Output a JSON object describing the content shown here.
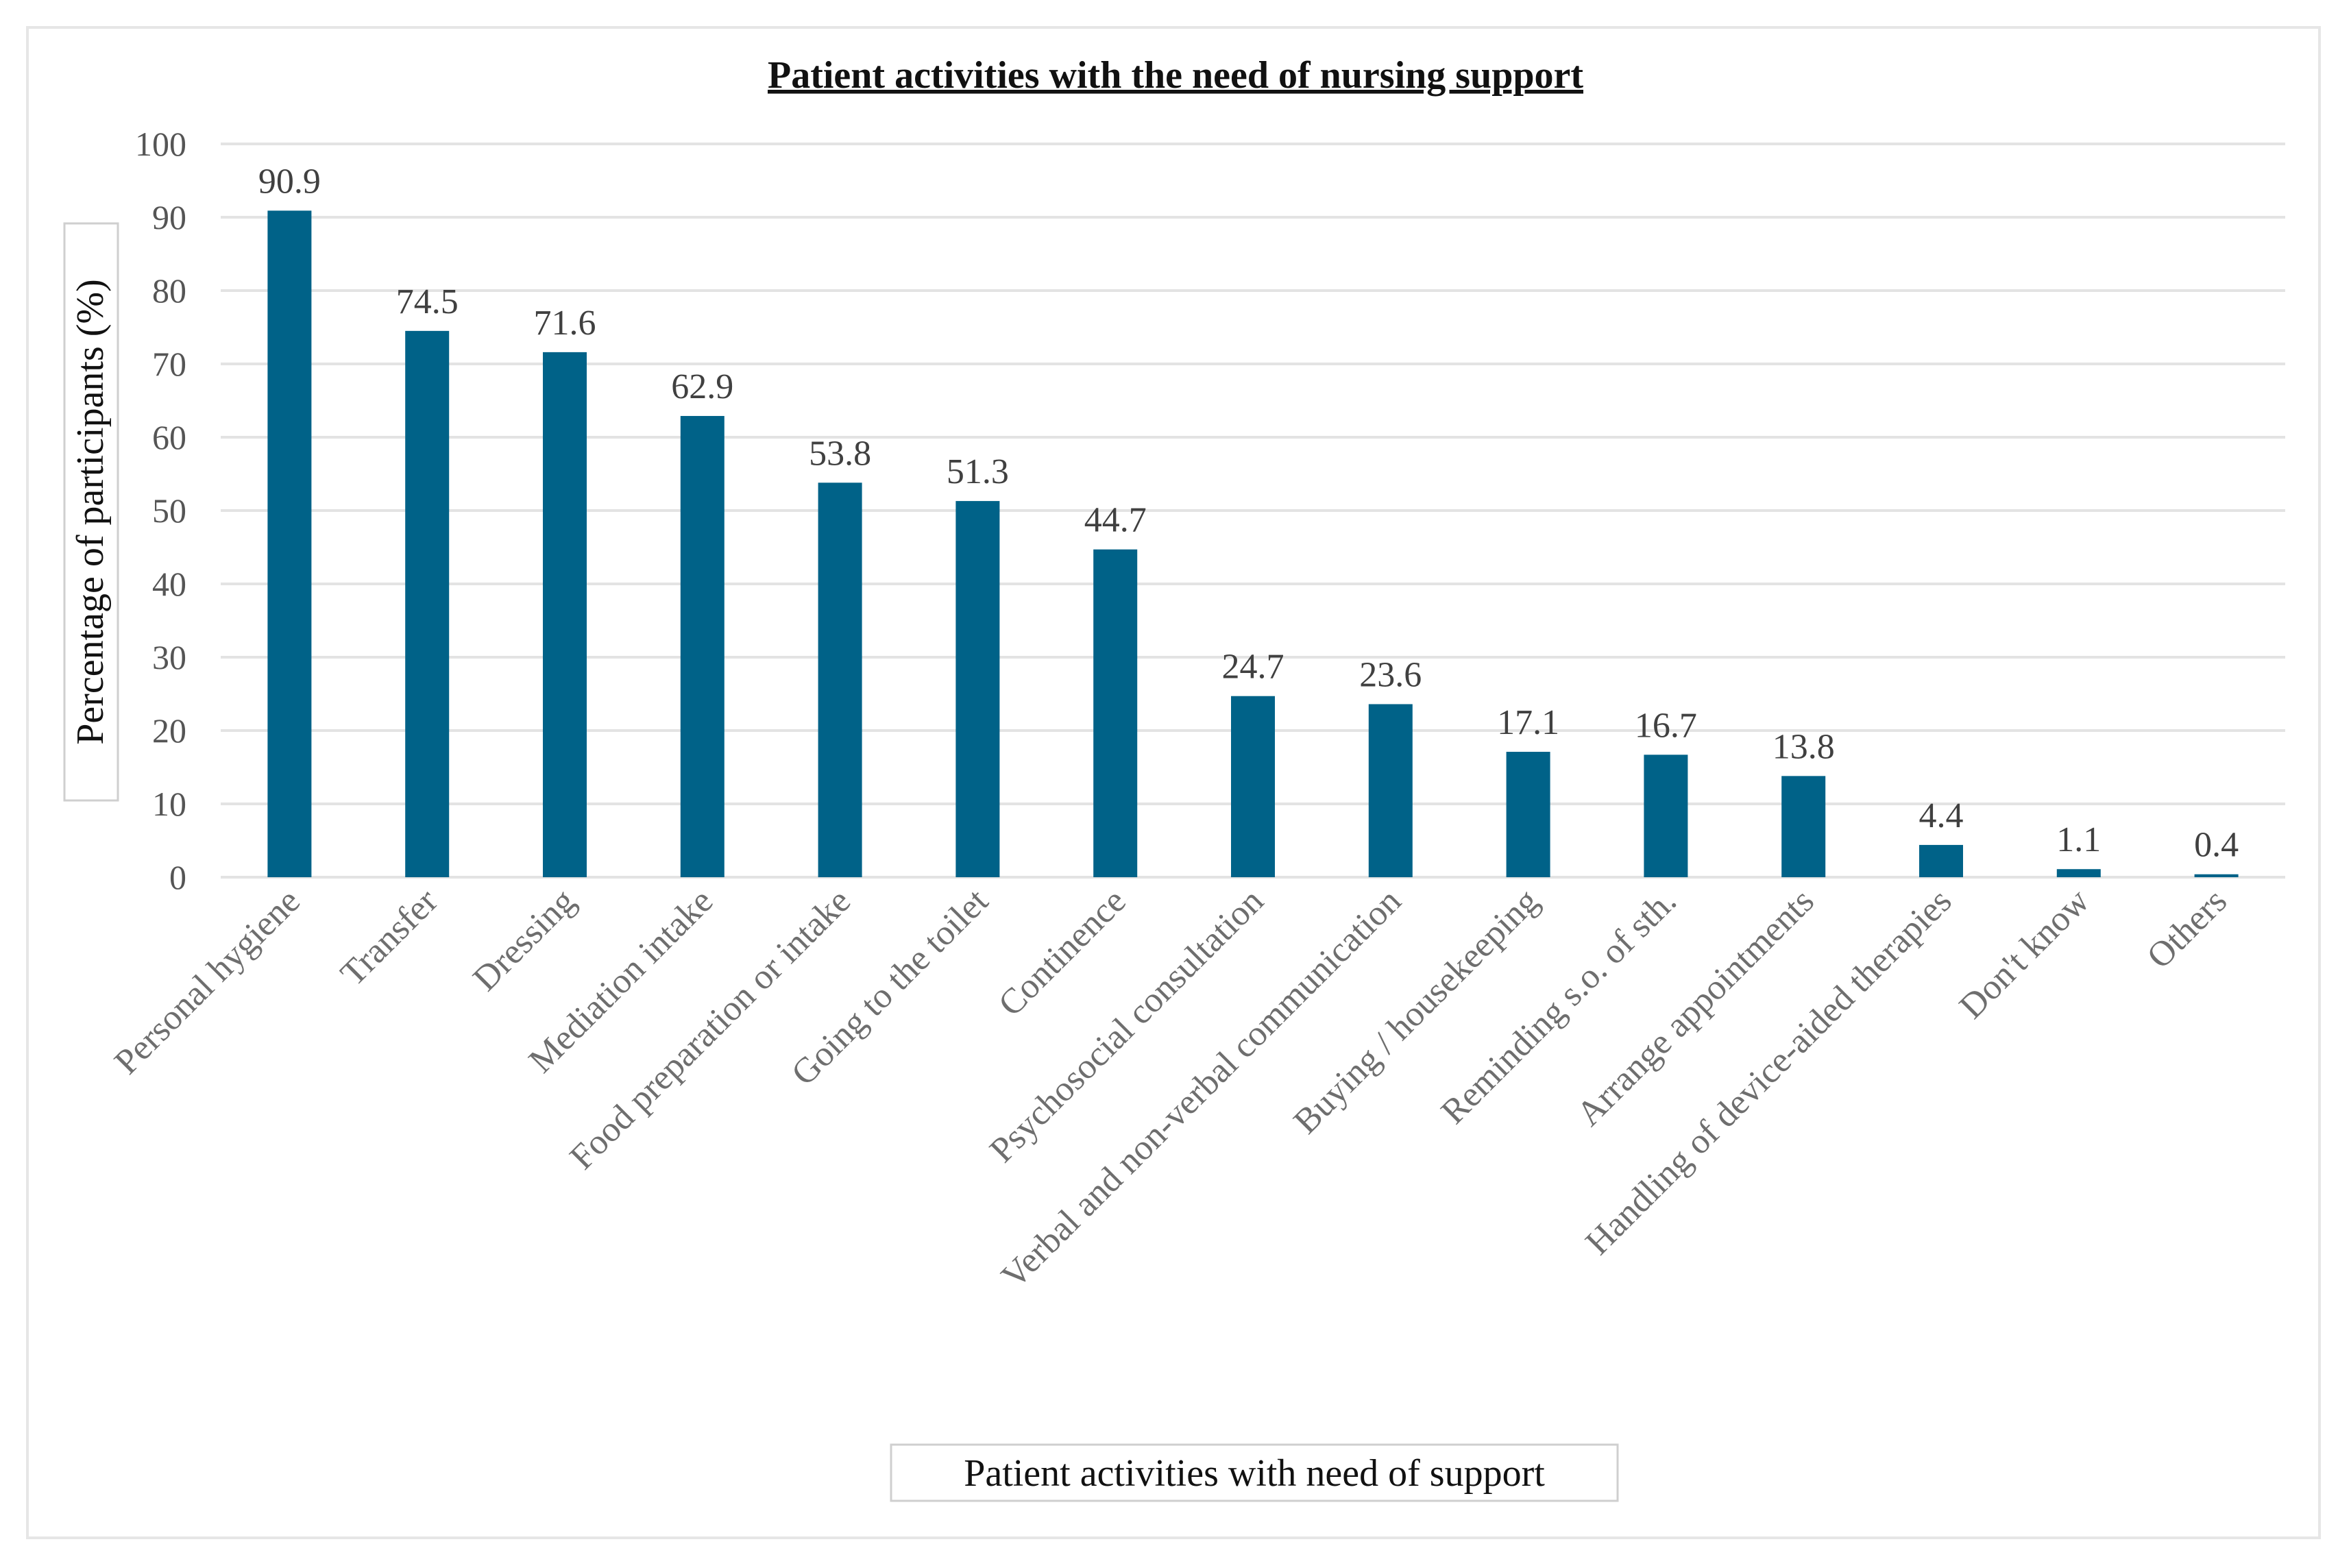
{
  "chart_data": {
    "type": "bar",
    "title": "Patient activities with the need of nursing support",
    "xlabel": "Patient activities with need of support",
    "ylabel": "Percentage of participants (%)",
    "ylim": [
      0,
      100
    ],
    "yticks": [
      0,
      10,
      20,
      30,
      40,
      50,
      60,
      70,
      80,
      90,
      100
    ],
    "grid": true,
    "bar_color": "#006288",
    "categories": [
      "Personal hygiene",
      "Transfer",
      "Dressing",
      "Mediation intake",
      "Food preparation or intake",
      "Going to the toilet",
      "Continence",
      "Psychosocial consultation",
      "Verbal and non-verbal communication",
      "Buying / housekeeping",
      "Reminding s.o. of sth.",
      "Arrange appointments",
      "Handling of device-aided therapies",
      "Don't know",
      "Others"
    ],
    "values": [
      90.9,
      74.5,
      71.6,
      62.9,
      53.8,
      51.3,
      44.7,
      24.7,
      23.6,
      17.1,
      16.7,
      13.8,
      4.4,
      1.1,
      0.4
    ],
    "data_labels": [
      "90.9",
      "74.5",
      "71.6",
      "62.9",
      "53.8",
      "51.3",
      "44.7",
      "24.7",
      "23.6",
      "17.1",
      "16.7",
      "13.8",
      "4.4",
      "1.1",
      "0.4"
    ]
  }
}
